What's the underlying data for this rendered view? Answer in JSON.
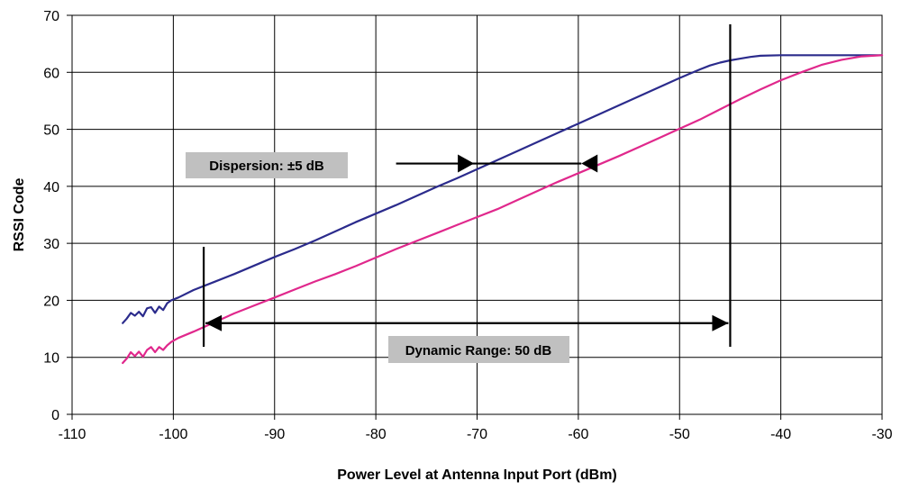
{
  "chart_data": {
    "type": "line",
    "title": "",
    "xlabel": "Power Level at Antenna Input Port (dBm)",
    "ylabel": "RSSI Code",
    "xlim": [
      -110,
      -30
    ],
    "ylim": [
      0,
      70
    ],
    "x_ticks": [
      "-110",
      "-100",
      "-90",
      "-80",
      "-70",
      "-60",
      "-50",
      "-40",
      "-30"
    ],
    "y_ticks": [
      "0",
      "10",
      "20",
      "30",
      "40",
      "50",
      "60",
      "70"
    ],
    "grid": true,
    "legend": "none",
    "colors": {
      "upper": "#2b2b8c",
      "lower": "#e0288c",
      "annotation_box": "#c0c0c0"
    },
    "series": [
      {
        "x": [
          -105,
          -104.6,
          -104.2,
          -103.8,
          -103.4,
          -103,
          -102.6,
          -102.2,
          -101.8,
          -101.4,
          -101,
          -100.6,
          -100.2,
          -99.5,
          -98,
          -96,
          -94,
          -92,
          -90,
          -88,
          -86,
          -84,
          -82,
          -80,
          -78,
          -76,
          -74,
          -72,
          -70,
          -68,
          -66,
          -64,
          -62,
          -60,
          -58,
          -56,
          -54,
          -52,
          -50,
          -48,
          -47,
          -46,
          -45,
          -44,
          -43,
          -42,
          -40,
          -35,
          -30
        ],
        "y": [
          16,
          16.8,
          17.8,
          17.3,
          18,
          17.2,
          18.6,
          18.8,
          17.8,
          18.9,
          18.3,
          19.5,
          20,
          20.5,
          21.8,
          23.2,
          24.6,
          26.1,
          27.6,
          29,
          30.5,
          32.1,
          33.7,
          35.2,
          36.7,
          38.3,
          39.9,
          41.4,
          43,
          44.6,
          46.2,
          47.8,
          49.4,
          51,
          52.6,
          54.2,
          55.8,
          57.4,
          59,
          60.5,
          61.2,
          61.7,
          62.1,
          62.4,
          62.7,
          62.9,
          63,
          63,
          63
        ]
      },
      {
        "x": [
          -105,
          -104.6,
          -104.2,
          -103.8,
          -103.4,
          -103,
          -102.6,
          -102.2,
          -101.8,
          -101.4,
          -101,
          -100.6,
          -100.2,
          -99.5,
          -98,
          -96,
          -94,
          -92,
          -90,
          -88,
          -86,
          -84,
          -82,
          -80,
          -78,
          -76,
          -74,
          -72,
          -70,
          -68,
          -66,
          -64,
          -62,
          -60,
          -58,
          -56,
          -54,
          -52,
          -50,
          -48,
          -46,
          -45,
          -44,
          -42,
          -40,
          -38,
          -36,
          -34,
          -32,
          -30
        ],
        "y": [
          9,
          9.8,
          10.9,
          10.2,
          11,
          10.1,
          11.3,
          11.8,
          10.9,
          11.8,
          11.3,
          12.1,
          12.7,
          13.4,
          14.5,
          16.1,
          17.7,
          19.1,
          20.5,
          21.9,
          23.3,
          24.6,
          26,
          27.5,
          29,
          30.4,
          31.8,
          33.2,
          34.6,
          36,
          37.6,
          39.2,
          40.8,
          42.3,
          43.8,
          45.3,
          46.9,
          48.5,
          50.1,
          51.7,
          53.5,
          54.4,
          55.3,
          57,
          58.6,
          60,
          61.3,
          62.2,
          62.8,
          63
        ]
      }
    ],
    "annotations": {
      "dispersion": {
        "label": "Dispersion: ±5 dB",
        "arrow_from_x": -78,
        "arrow_tip_left_x": -70.3,
        "arrow_tip_right_x": -59.7,
        "y": 44
      },
      "dynamic_range": {
        "label": "Dynamic Range: 50 dB",
        "left_marker_x": -97,
        "right_marker_x": -45,
        "arrow_y": 16
      }
    }
  }
}
